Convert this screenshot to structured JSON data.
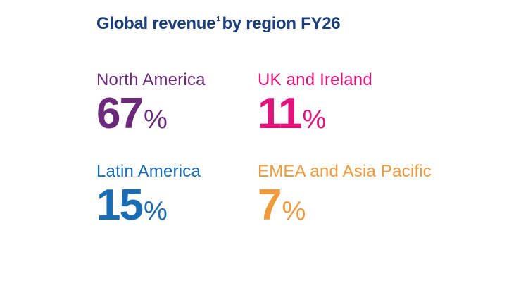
{
  "chart_data": {
    "type": "table",
    "title": "Global revenue",
    "title_footnote": "1",
    "title_suffix": "by region FY26",
    "unit": "%",
    "regions": [
      {
        "name": "North America",
        "value": 67,
        "color": "#6b2a7a"
      },
      {
        "name": "UK and Ireland",
        "value": 11,
        "color": "#e0137a"
      },
      {
        "name": "Latin America",
        "value": 15,
        "color": "#1a6db3"
      },
      {
        "name": "EMEA and Asia Pacific",
        "value": 7,
        "color": "#ef9a3d"
      }
    ]
  }
}
